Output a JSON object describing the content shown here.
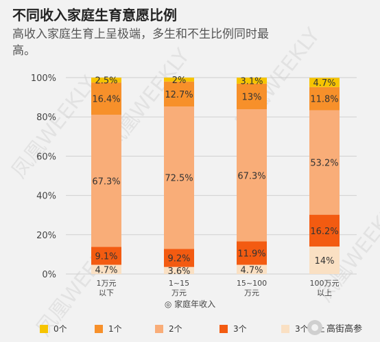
{
  "header": {
    "title": "不同收入家庭生育意愿比例",
    "subtitle": "高收入家庭生育上呈极端，多生和不生比例同时最高。"
  },
  "watermark": "凤凰WEEKLY",
  "brand": {
    "name": "高街高参",
    "icon": "wechat-icon"
  },
  "chart_data": {
    "type": "bar",
    "stacked": true,
    "categories": [
      "1万元\n以下",
      "1~15\n万元",
      "15~100\n万元",
      "100万元\n以上"
    ],
    "y_ticks": [
      "0%",
      "20%",
      "40%",
      "60%",
      "80%",
      "100%"
    ],
    "ylim": [
      0,
      100
    ],
    "xlabel": "家庭年收入",
    "legend_position": "bottom",
    "series": [
      {
        "name": "0个",
        "color": "#f6c400",
        "values": [
          2.5,
          2,
          3.1,
          4.7
        ],
        "labels": [
          "2.5%",
          "2%",
          "3.1%",
          "4.7%"
        ]
      },
      {
        "name": "1个",
        "color": "#f7902a",
        "values": [
          16.4,
          12.7,
          13,
          11.8
        ],
        "labels": [
          "16.4%",
          "12.7%",
          "13%",
          "11.8%"
        ]
      },
      {
        "name": "2个",
        "color": "#f9ad78",
        "values": [
          67.3,
          72.5,
          67.3,
          53.2
        ],
        "labels": [
          "67.3%",
          "72.5%",
          "67.3%",
          "53.2%"
        ]
      },
      {
        "name": "3个",
        "color": "#f35b11",
        "values": [
          9.1,
          9.2,
          11.9,
          16.2
        ],
        "labels": [
          "9.1%",
          "9.2%",
          "11.9%",
          "16.2%"
        ]
      },
      {
        "name": "3个以上",
        "color": "#fae0c3",
        "values": [
          4.7,
          3.6,
          4.7,
          14
        ],
        "labels": [
          "4.7%",
          "3.6%",
          "4.7%",
          "14%"
        ]
      }
    ]
  }
}
